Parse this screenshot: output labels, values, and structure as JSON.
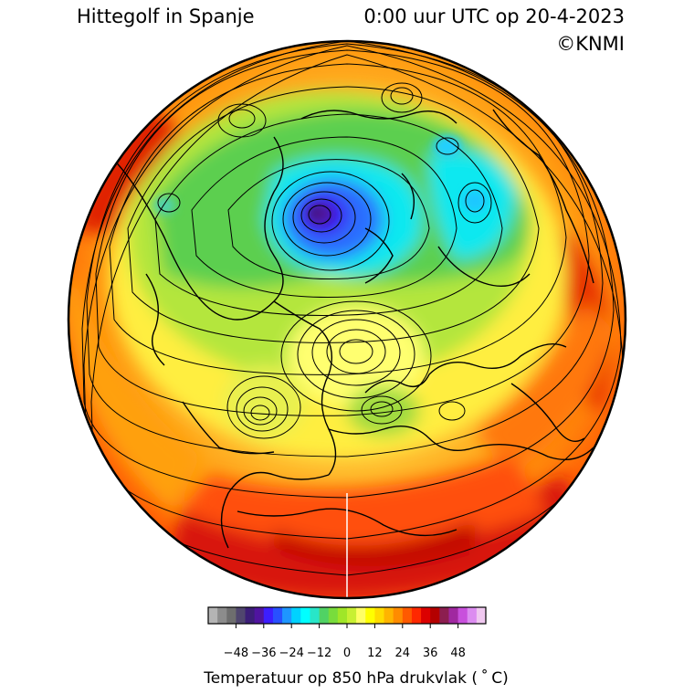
{
  "header": {
    "title": "Hittegolf in Spanje",
    "time": "0:00 uur UTC op 20-4-2023",
    "copyright": "©KNMI"
  },
  "map": {
    "projection": "orthographic",
    "variable": "temperature_850hPa",
    "contours": "geopotential_isolines"
  },
  "colorbar": {
    "title": "Temperatuur op 850 hPa drukvlak ( ˚ C)",
    "tick_labels": [
      "−48",
      "−36",
      "−24",
      "−12",
      "0",
      "12",
      "24",
      "36",
      "48"
    ],
    "tick_values": [
      -48,
      -36,
      -24,
      -12,
      0,
      12,
      24,
      36,
      48
    ],
    "range": [
      -60,
      60
    ],
    "colors": [
      "#b4b4b4",
      "#8c8c8c",
      "#6e6e6e",
      "#50466e",
      "#3c1e78",
      "#5014a0",
      "#3c1eff",
      "#2850ff",
      "#1e96ff",
      "#00d2ff",
      "#00ffff",
      "#28e6c8",
      "#50d264",
      "#78dc3c",
      "#a0e628",
      "#c8f032",
      "#ffff64",
      "#ffff00",
      "#ffdc00",
      "#ffb400",
      "#ff8c00",
      "#ff5a00",
      "#ff2800",
      "#dc0000",
      "#b40000",
      "#8c1e50",
      "#a028a0",
      "#c850dc",
      "#dc8cf0",
      "#f0c8f0"
    ]
  }
}
